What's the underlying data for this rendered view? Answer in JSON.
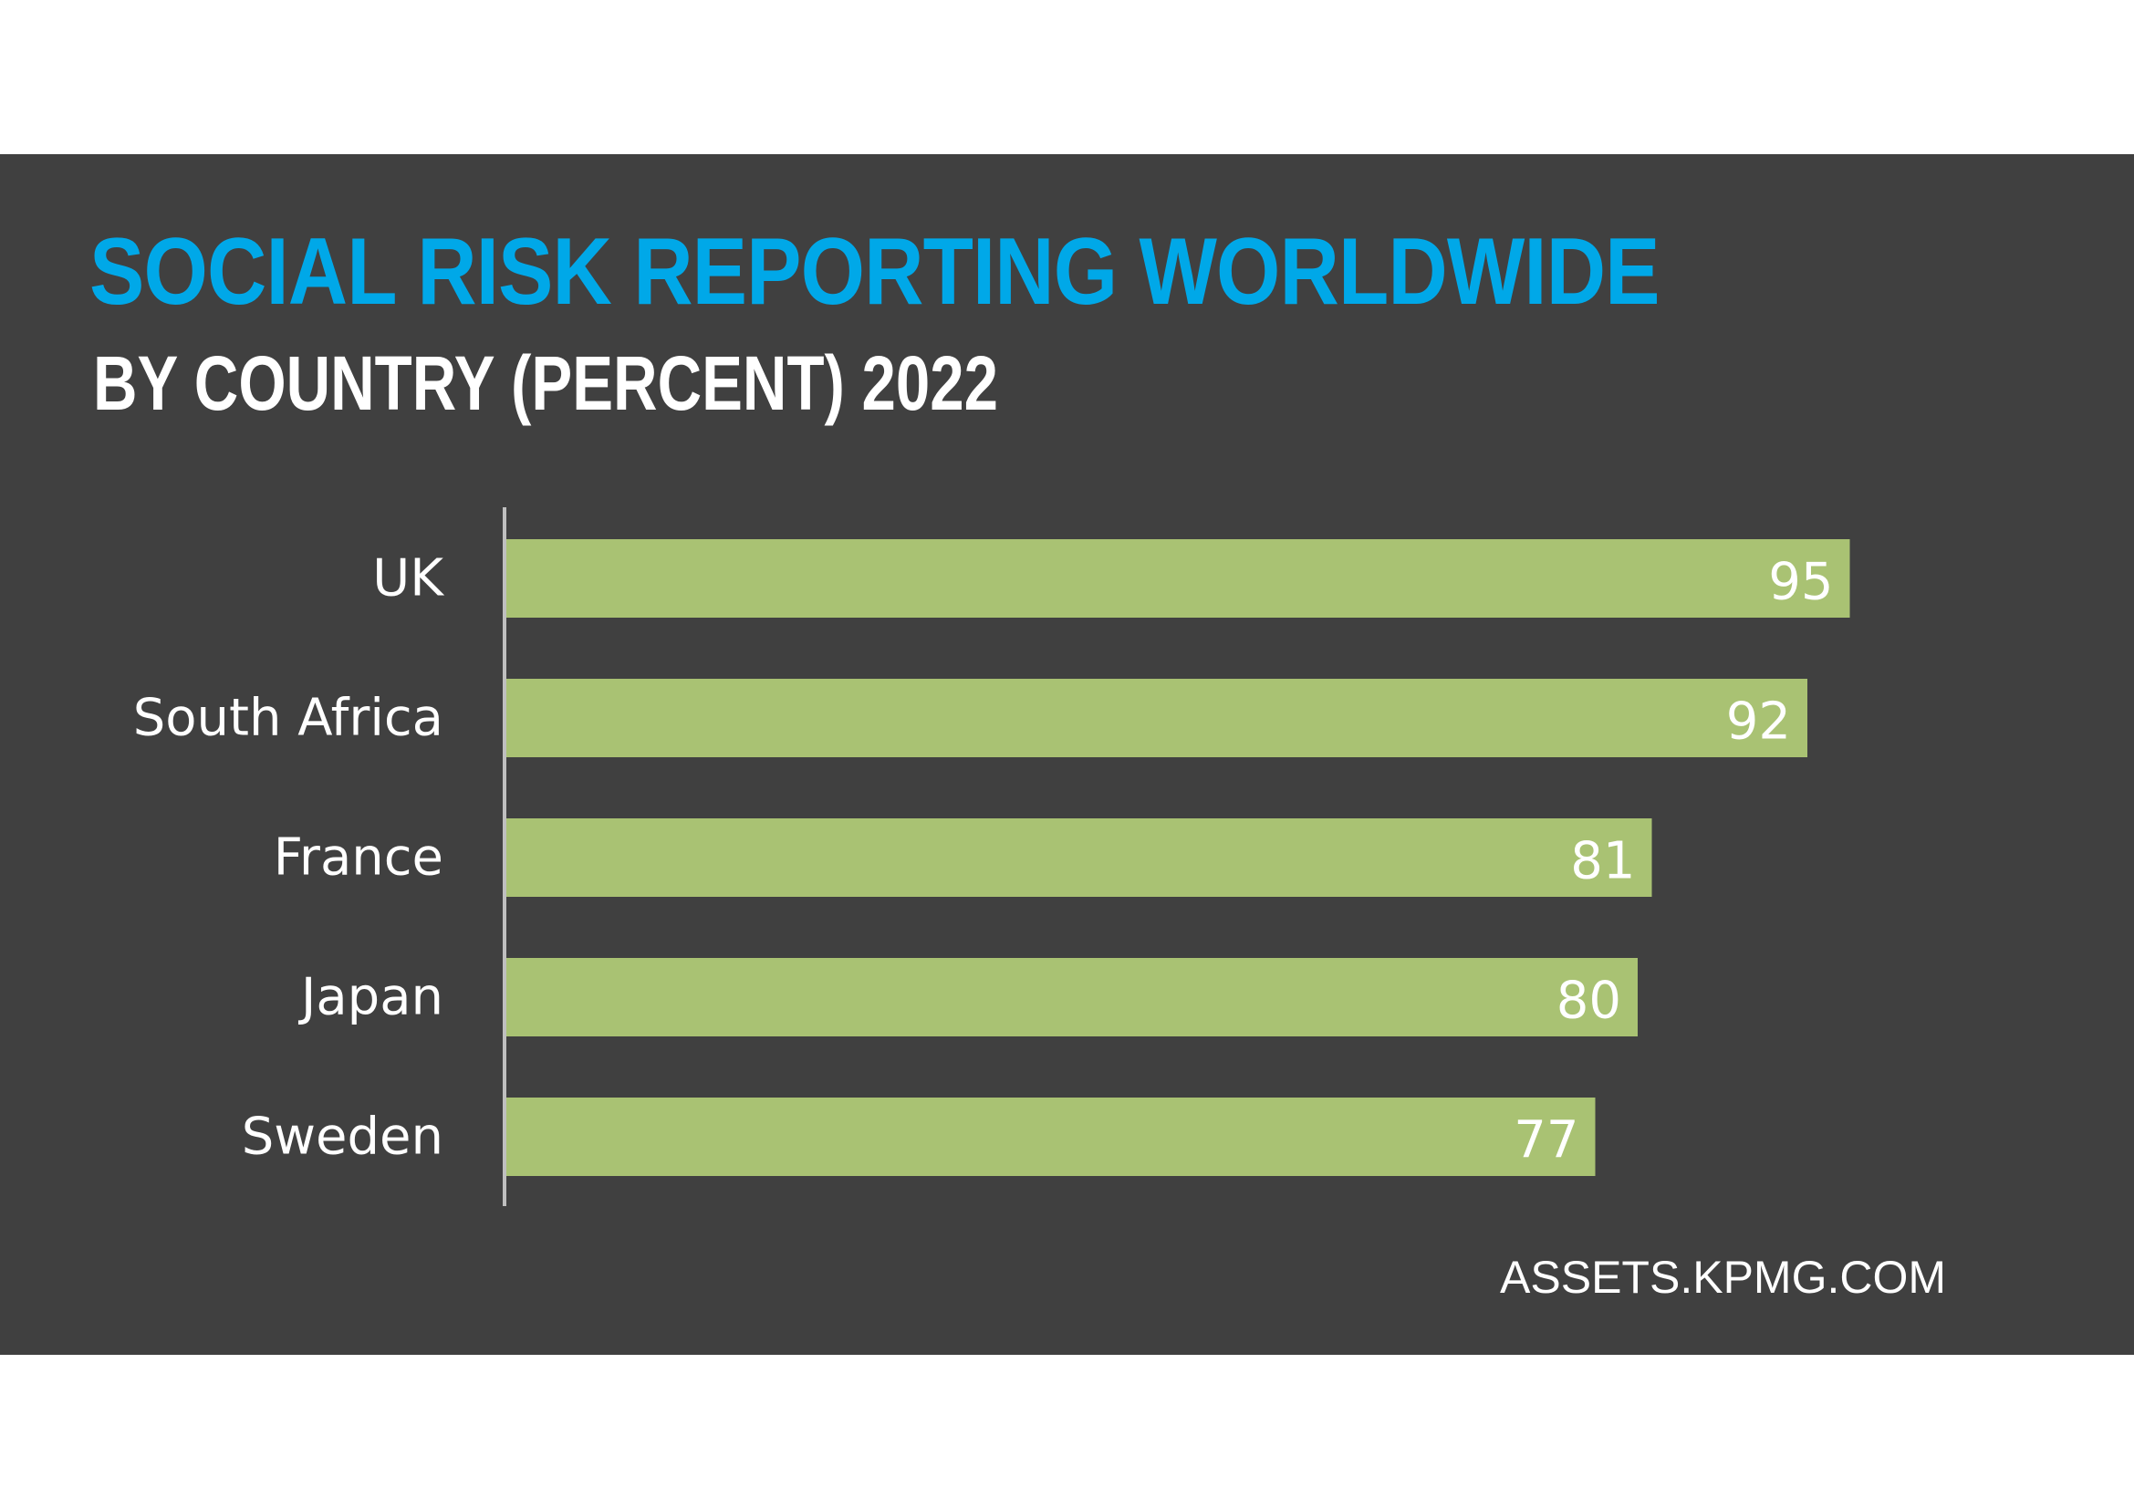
{
  "colors": {
    "background": "#404040",
    "title": "#00a8e8",
    "subtitle": "#ffffff",
    "bar": "#a9c273",
    "text": "#ffffff",
    "axis": "#bfbfbf"
  },
  "header": {
    "title": "SOCIAL RISK REPORTING WORLDWIDE",
    "subtitle": "BY COUNTRY (PERCENT) 2022"
  },
  "source": "ASSETS.KPMG.COM",
  "chart_data": {
    "type": "bar",
    "orientation": "horizontal",
    "title": "SOCIAL RISK REPORTING WORLDWIDE",
    "subtitle": "BY COUNTRY (PERCENT) 2022",
    "categories": [
      "UK",
      "South Africa",
      "France",
      "Japan",
      "Sweden"
    ],
    "values": [
      95,
      92,
      81,
      80,
      77
    ],
    "unit": "percent",
    "xlim": [
      0,
      100
    ],
    "xlabel": "",
    "ylabel": "",
    "grid": false,
    "legend": "none",
    "data_labels": "inside-end"
  }
}
